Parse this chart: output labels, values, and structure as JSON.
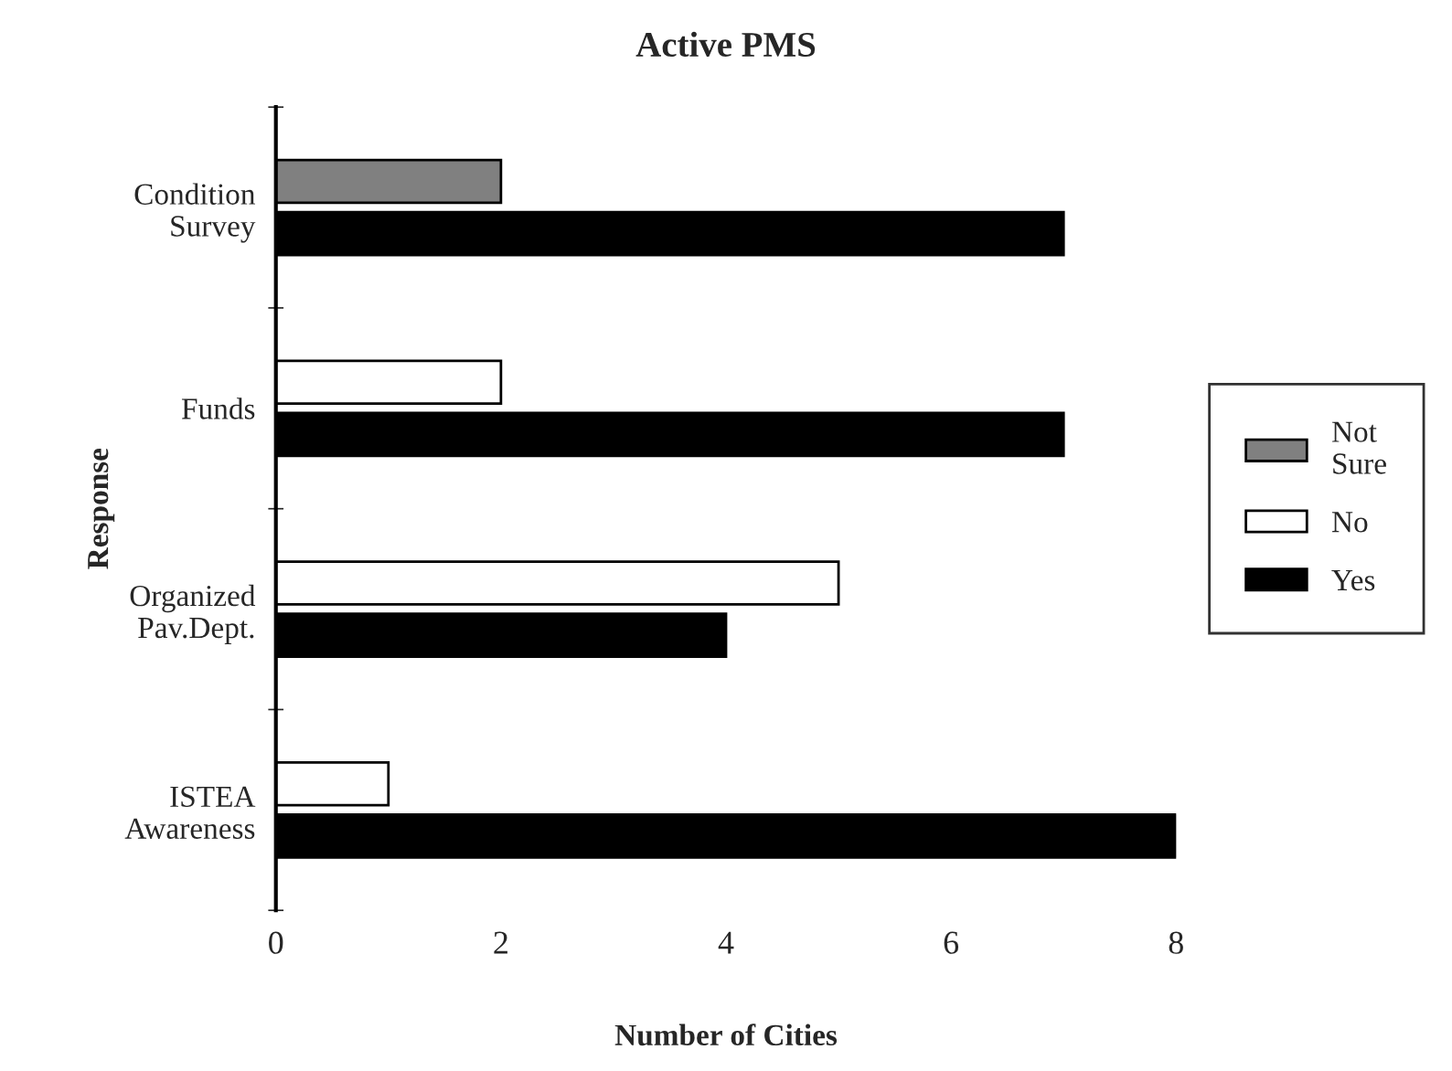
{
  "chart_data": {
    "type": "bar",
    "orientation": "horizontal",
    "title": "Active PMS",
    "xlabel": "Number of Cities",
    "ylabel": "Response",
    "categories": [
      "Condition\nSurvey",
      "Funds",
      "Organized\nPav.Dept.",
      "ISTEA\nAwareness"
    ],
    "series": [
      {
        "name": "Not\nSure",
        "color": "#808080",
        "values": [
          2,
          null,
          null,
          null
        ]
      },
      {
        "name": "No",
        "color": "#ffffff",
        "values": [
          null,
          2,
          5,
          1
        ]
      },
      {
        "name": "Yes",
        "color": "#000000",
        "values": [
          7,
          7,
          4,
          8
        ]
      }
    ],
    "xlim": [
      0,
      8
    ],
    "xticks": [
      0,
      2,
      4,
      6,
      8
    ],
    "grid": false,
    "legend": "right"
  }
}
